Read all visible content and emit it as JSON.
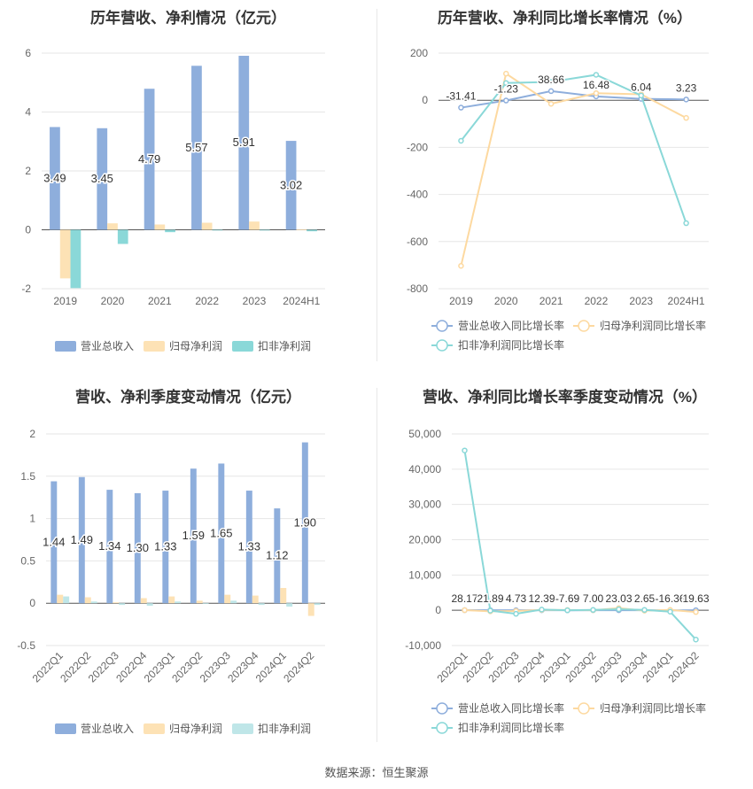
{
  "source": "数据来源：恒生聚源",
  "chart_data": [
    {
      "type": "bar",
      "title": "历年营收、净利情况（亿元）",
      "categories": [
        "2019",
        "2020",
        "2021",
        "2022",
        "2023",
        "2024H1"
      ],
      "ylim": [
        -2,
        6
      ],
      "yticks": [
        -2,
        0,
        2,
        4,
        6
      ],
      "series": [
        {
          "name": "营业总收入",
          "values": [
            3.49,
            3.45,
            4.79,
            5.57,
            5.91,
            3.02
          ],
          "color": "#8eaedc",
          "labels": [
            "3.49",
            "3.45",
            "4.79",
            "5.57",
            "5.91",
            "3.02"
          ]
        },
        {
          "name": "归母净利润",
          "values": [
            -1.65,
            0.22,
            0.18,
            0.24,
            0.28,
            0.01
          ],
          "color": "#fde2b5"
        },
        {
          "name": "扣非净利润",
          "values": [
            -1.98,
            -0.48,
            -0.08,
            0.0,
            0.0,
            -0.05
          ],
          "color": "#8ad8d8"
        }
      ],
      "grid": true,
      "legend": "bottom"
    },
    {
      "type": "line",
      "title": "历年营收、净利同比增长率情况（%）",
      "categories": [
        "2019",
        "2020",
        "2021",
        "2022",
        "2023",
        "2024H1"
      ],
      "ylim": [
        -800,
        200
      ],
      "yticks": [
        -800,
        -600,
        -400,
        -200,
        0,
        200
      ],
      "series": [
        {
          "name": "营业总收入同比增长率",
          "values": [
            -31.41,
            -1.23,
            38.66,
            16.48,
            6.04,
            3.23
          ],
          "color": "#8eaedc",
          "labels": [
            "-31.41",
            "-1.23",
            "38.66",
            "16.48",
            "6.04",
            "3.23"
          ]
        },
        {
          "name": "归母净利润同比增长率",
          "values": [
            -703,
            113,
            -15,
            30,
            25,
            -75
          ],
          "color": "#fdd9a0"
        },
        {
          "name": "扣非净利润同比增长率",
          "values": [
            -172,
            73,
            78,
            108,
            20,
            -522
          ],
          "color": "#8ad8d8"
        }
      ],
      "grid": true,
      "legend": "bottom"
    },
    {
      "type": "bar",
      "title": "营收、净利季度变动情况（亿元）",
      "categories": [
        "2022Q1",
        "2022Q2",
        "2022Q3",
        "2022Q4",
        "2023Q1",
        "2023Q2",
        "2023Q3",
        "2023Q4",
        "2024Q1",
        "2024Q2"
      ],
      "ylim": [
        -0.5,
        2
      ],
      "yticks": [
        -0.5,
        0,
        0.5,
        1,
        1.5,
        2
      ],
      "series": [
        {
          "name": "营业总收入",
          "values": [
            1.44,
            1.49,
            1.34,
            1.3,
            1.33,
            1.59,
            1.65,
            1.33,
            1.12,
            1.9
          ],
          "color": "#8eaedc",
          "labels": [
            "1.44",
            "1.49",
            "1.34",
            "1.30",
            "1.33",
            "1.59",
            "1.65",
            "1.33",
            "1.12",
            "1.90"
          ]
        },
        {
          "name": "归母净利润",
          "values": [
            0.1,
            0.07,
            0.01,
            0.06,
            0.08,
            0.03,
            0.1,
            0.09,
            0.18,
            -0.15
          ],
          "color": "#fde2b5"
        },
        {
          "name": "扣非净利润",
          "values": [
            0.08,
            0.02,
            -0.02,
            -0.03,
            0.02,
            0.0,
            0.03,
            -0.02,
            -0.04,
            -0.02
          ],
          "color": "#bfe6e8"
        }
      ],
      "grid": true,
      "legend": "bottom"
    },
    {
      "type": "line",
      "title": "营收、净利同比增长率季度变动情况（%）",
      "categories": [
        "2022Q1",
        "2022Q2",
        "2022Q3",
        "2022Q4",
        "2023Q1",
        "2023Q2",
        "2023Q3",
        "2023Q4",
        "2024Q1",
        "2024Q2"
      ],
      "ylim": [
        -10000,
        50000
      ],
      "yticks": [
        -10000,
        0,
        10000,
        20000,
        30000,
        40000,
        50000
      ],
      "ytick_labels": [
        "-10,000",
        "0",
        "10,000",
        "20,000",
        "30,000",
        "40,000",
        "50,000"
      ],
      "series": [
        {
          "name": "营业总收入同比增长率",
          "values": [
            28.17,
            21.89,
            4.73,
            12.39,
            -7.69,
            7.0,
            23.03,
            2.65,
            -16.36,
            19.63
          ],
          "color": "#8eaedc",
          "labels": [
            "28.17",
            "21.89",
            "4.73",
            "12.39",
            "-7.69",
            "7.00",
            "23.03",
            "2.65",
            "-16.36",
            "19.63"
          ]
        },
        {
          "name": "归母净利润同比增长率",
          "values": [
            30,
            -300,
            -200,
            100,
            60,
            20,
            600,
            -100,
            100,
            -500
          ],
          "color": "#fdd9a0"
        },
        {
          "name": "扣非净利润同比增长率",
          "values": [
            45300,
            -100,
            -1000,
            200,
            0,
            100,
            300,
            100,
            -400,
            -8300
          ],
          "color": "#8ad8d8"
        }
      ],
      "grid": true,
      "legend": "bottom"
    }
  ]
}
